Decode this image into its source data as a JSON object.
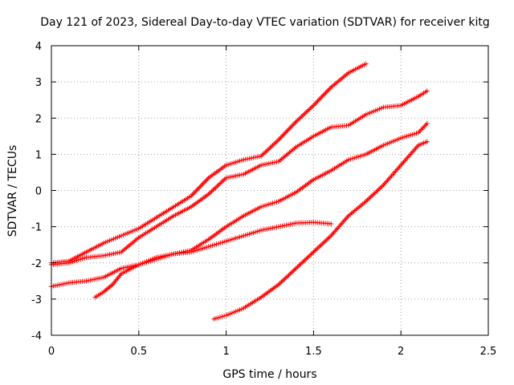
{
  "chart_data": {
    "type": "scatter",
    "title": "Day 121 of 2023, Sidereal Day-to-day VTEC variation (SDTVAR) for receiver kitg",
    "xlabel": "GPS time / hours",
    "ylabel": "SDTVAR / TECUs",
    "xlim": [
      0,
      2.5
    ],
    "ylim": [
      -4,
      4
    ],
    "xticks": [
      0,
      0.5,
      1,
      1.5,
      2,
      2.5
    ],
    "xtick_labels": [
      "0",
      "0.5",
      "1",
      "1.5",
      "2",
      "2.5"
    ],
    "yticks": [
      -4,
      -3,
      -2,
      -1,
      0,
      1,
      2,
      3,
      4
    ],
    "ytick_labels": [
      "-4",
      "-3",
      "-2",
      "-1",
      "0",
      "1",
      "2",
      "3",
      "4"
    ],
    "grid": true,
    "marker": "plus",
    "color": "#ff0000",
    "series": [
      {
        "x": [
          0.0,
          0.1,
          0.2,
          0.3,
          0.4,
          0.5,
          0.6,
          0.7,
          0.8,
          0.9,
          1.0,
          1.1,
          1.2,
          1.3,
          1.4,
          1.5,
          1.6,
          1.7,
          1.8
        ],
        "values": [
          -2.0,
          -1.95,
          -1.7,
          -1.45,
          -1.25,
          -1.05,
          -0.75,
          -0.45,
          -0.15,
          0.35,
          0.7,
          0.85,
          0.95,
          1.4,
          1.9,
          2.35,
          2.85,
          3.25,
          3.5
        ]
      },
      {
        "x": [
          0.0,
          0.1,
          0.2,
          0.3,
          0.4,
          0.5,
          0.6,
          0.7,
          0.8,
          0.9,
          1.0,
          1.1,
          1.2,
          1.3,
          1.4,
          1.5,
          1.6,
          1.7,
          1.8,
          1.9,
          2.0,
          2.1,
          2.15
        ],
        "values": [
          -2.05,
          -2.0,
          -1.85,
          -1.8,
          -1.7,
          -1.3,
          -1.0,
          -0.7,
          -0.45,
          -0.1,
          0.35,
          0.45,
          0.7,
          0.8,
          1.2,
          1.5,
          1.75,
          1.8,
          2.1,
          2.3,
          2.35,
          2.6,
          2.75
        ]
      },
      {
        "x": [
          0.0,
          0.1,
          0.2,
          0.3,
          0.4,
          0.5,
          0.6,
          0.7,
          0.8,
          0.9,
          1.0,
          1.1,
          1.2,
          1.3,
          1.4,
          1.5,
          1.6,
          1.7,
          1.8,
          1.9,
          2.0,
          2.1,
          2.15
        ],
        "values": [
          -2.65,
          -2.55,
          -2.5,
          -2.4,
          -2.15,
          -2.05,
          -1.85,
          -1.75,
          -1.65,
          -1.35,
          -1.0,
          -0.7,
          -0.45,
          -0.3,
          -0.05,
          0.3,
          0.55,
          0.85,
          1.0,
          1.25,
          1.45,
          1.6,
          1.85
        ]
      },
      {
        "x": [
          0.25,
          0.3,
          0.35,
          0.4,
          0.5,
          0.6,
          0.7,
          0.8,
          0.9,
          1.0,
          1.1,
          1.2,
          1.3,
          1.4,
          1.5,
          1.6
        ],
        "values": [
          -2.95,
          -2.8,
          -2.6,
          -2.3,
          -2.05,
          -1.9,
          -1.75,
          -1.7,
          -1.55,
          -1.4,
          -1.25,
          -1.1,
          -1.0,
          -0.9,
          -0.88,
          -0.92
        ]
      },
      {
        "x": [
          0.93,
          1.0,
          1.1,
          1.2,
          1.3,
          1.4,
          1.5,
          1.6,
          1.7,
          1.8,
          1.9,
          2.0,
          2.1,
          2.15
        ],
        "values": [
          -3.55,
          -3.45,
          -3.25,
          -2.95,
          -2.6,
          -2.15,
          -1.7,
          -1.25,
          -0.7,
          -0.3,
          0.15,
          0.7,
          1.25,
          1.35
        ]
      }
    ]
  }
}
